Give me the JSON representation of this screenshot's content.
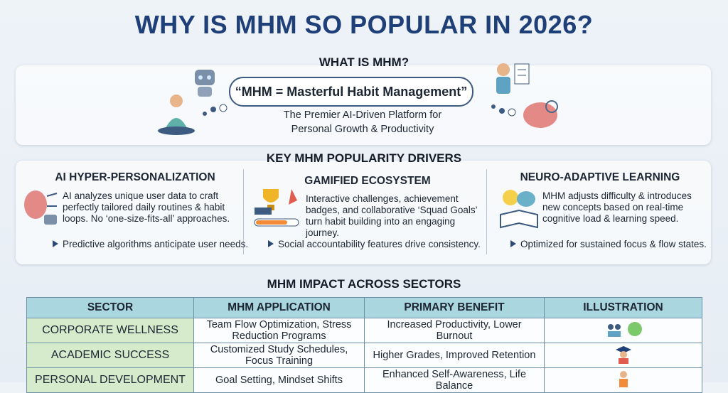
{
  "title": "WHY IS MHM SO POPULAR IN 2026?",
  "what_is": {
    "heading": "WHAT IS MHM?",
    "quote": "“MHM = Masterful Habit Management”",
    "subtitle": [
      "The Premier AI-Driven Platform for",
      "Personal Growth & Productivity"
    ]
  },
  "drivers": {
    "heading": "KEY MHM POPULARITY DRIVERS",
    "items": [
      {
        "title": "AI HYPER-PERSONALIZATION",
        "body": "AI analyzes unique user data to craft perfectly tailored daily routines & habit loops. No ‘one-size-fits-all’ approaches.",
        "bullet": "Predictive algorithms anticipate user needs."
      },
      {
        "title": "GAMIFIED ECOSYSTEM",
        "body": "Interactive challenges, achievement badges, and collaborative ‘Squad Goals’ turn habit building into an engaging journey.",
        "bullet": "Social accountability features drive consistency."
      },
      {
        "title": "NEURO-ADAPTIVE LEARNING",
        "body": "MHM adjusts difficulty & introduces new concepts based on real-time cognitive load & learning speed.",
        "bullet": "Optimized for sustained focus & flow states."
      }
    ]
  },
  "impact": {
    "heading": "MHM IMPACT ACROSS SECTORS",
    "table": {
      "header": [
        "SECTOR",
        "MHM APPLICATION",
        "PRIMARY BENEFIT",
        "ILLUSTRATION"
      ],
      "rows": [
        [
          "CORPORATE WELLNESS",
          "Team Flow Optimization, Stress Reduction Programs",
          "Increased Productivity, Lower Burnout"
        ],
        [
          "ACADEMIC SUCCESS",
          "Customized Study Schedules, Focus Training",
          "Higher Grades, Improved Retention"
        ],
        [
          "PERSONAL DEVELOPMENT",
          "Goal Setting, Mindset Shifts",
          "Enhanced Self-Awareness, Life Balance"
        ]
      ]
    }
  }
}
